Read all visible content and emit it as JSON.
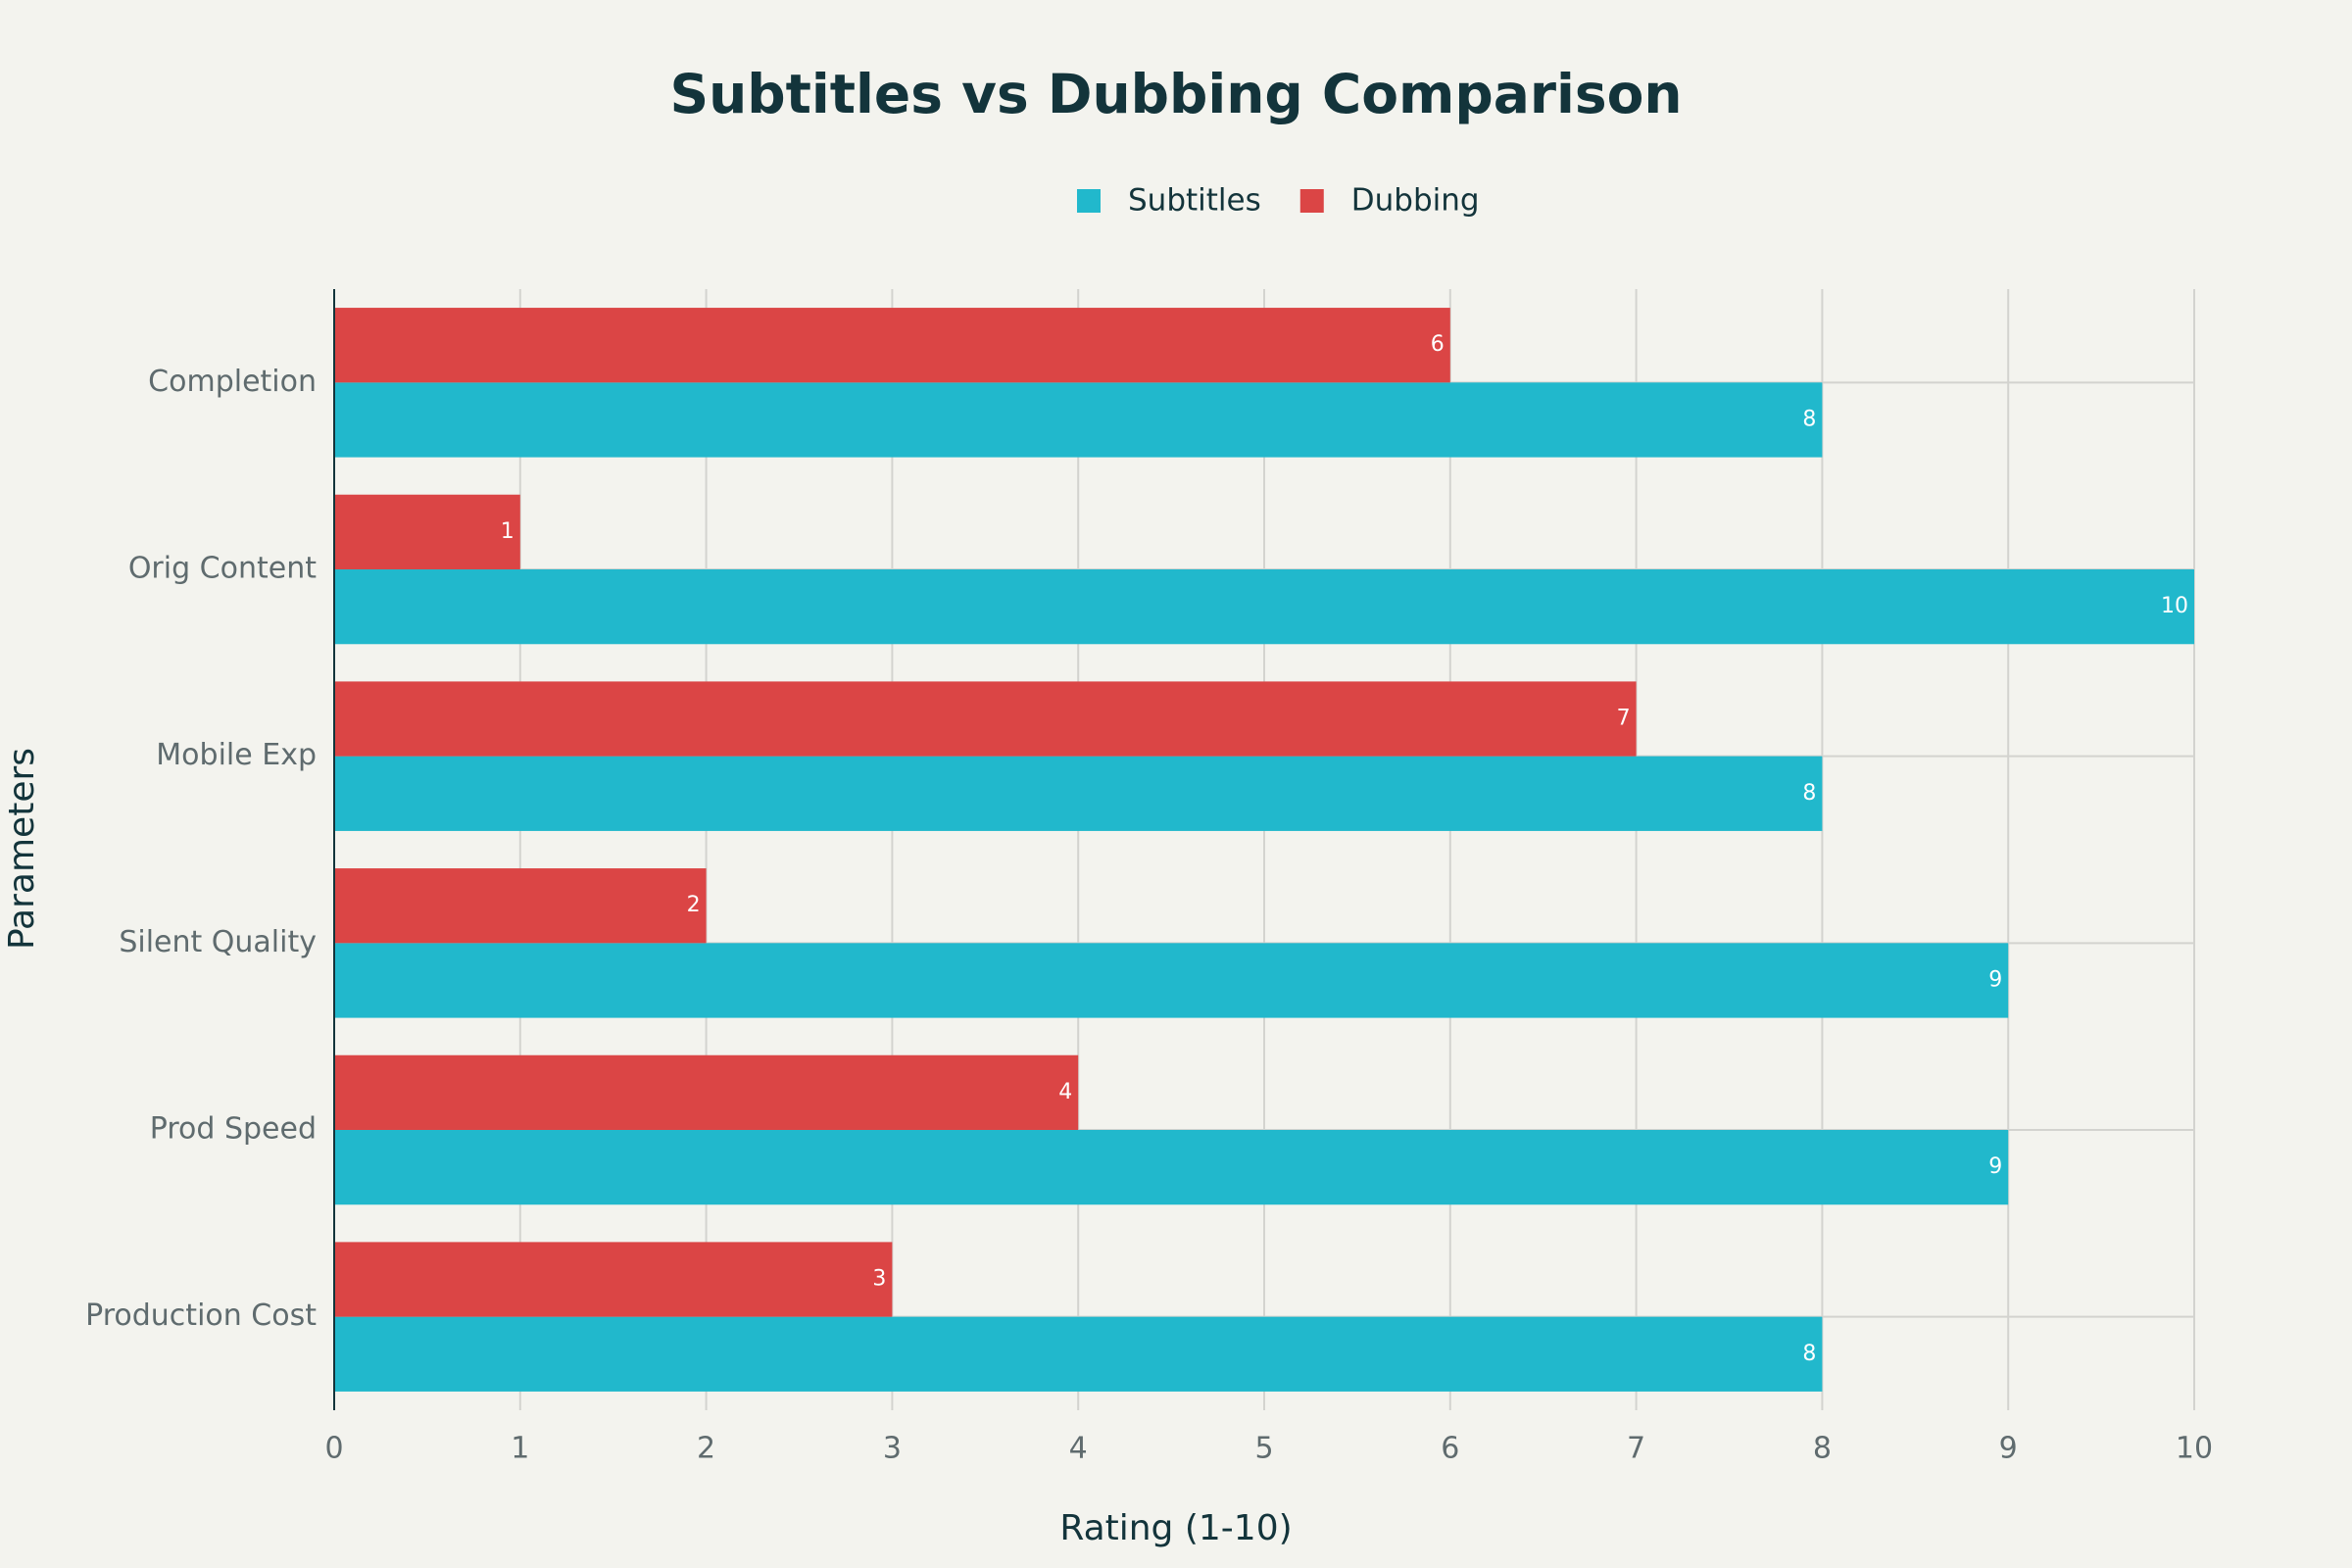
{
  "chart_data": {
    "type": "hbar",
    "title": "Subtitles vs Dubbing Comparison",
    "x_label": "Rating (1-10)",
    "y_label": "Parameters",
    "categories": [
      "Completion",
      "Orig Content",
      "Mobile Exp",
      "Silent Quality",
      "Prod Speed",
      "Production Cost"
    ],
    "series": [
      {
        "name": "Subtitles",
        "color": "#21b8cc",
        "values": [
          8,
          10,
          8,
          9,
          9,
          8
        ]
      },
      {
        "name": "Dubbing",
        "color": "#db4545",
        "values": [
          6,
          1,
          7,
          2,
          4,
          3
        ]
      }
    ],
    "xlim": [
      0,
      10
    ],
    "xticks": [
      0,
      1,
      2,
      3,
      4,
      5,
      6,
      7,
      8,
      9,
      10
    ],
    "grid": true,
    "legend": "top"
  }
}
